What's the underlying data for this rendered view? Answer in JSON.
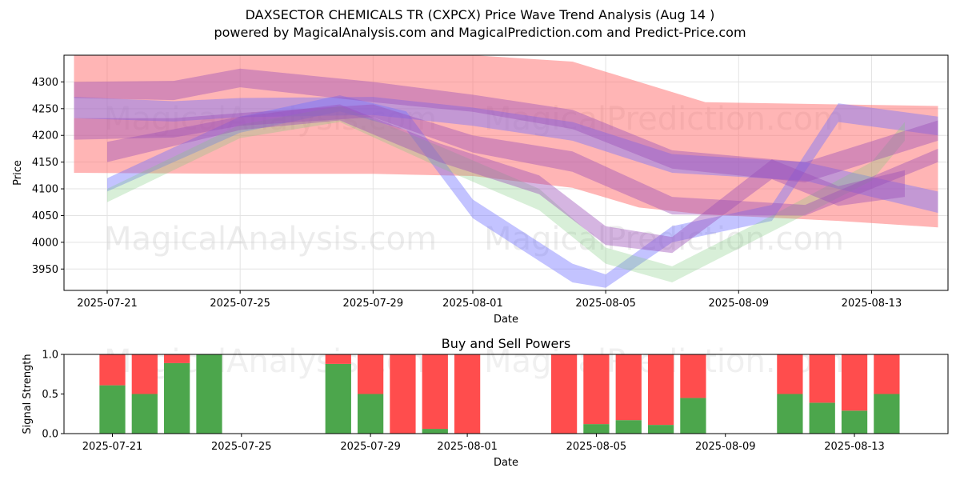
{
  "header": {
    "title": "DAXSECTOR CHEMICALS TR (CXPCX) Price Wave Trend Analysis (Aug 14 )",
    "subtitle": "powered by MagicalAnalysis.com and MagicalPrediction.com and Predict-Price.com"
  },
  "watermarks": [
    "MagicalAnalysis.com",
    "MagicalPrediction.com"
  ],
  "colors": {
    "red_band": "#ff6b6b",
    "blue_band": "#6f6fff",
    "green_band": "#7fc97f",
    "purple_band": "#9a4fb8",
    "buy": "#4ca64c",
    "sell": "#ff4d4d"
  },
  "chart_data": [
    {
      "type": "area",
      "xlabel": "Date",
      "ylabel": "Price",
      "ylim": [
        3910,
        4350
      ],
      "yticks": [
        3950,
        4000,
        4050,
        4100,
        4150,
        4200,
        4250,
        4300
      ],
      "x_start": "2025-07-20",
      "x_end": "2025-08-15",
      "xticks": [
        "2025-07-21",
        "2025-07-25",
        "2025-07-29",
        "2025-08-01",
        "2025-08-05",
        "2025-08-09",
        "2025-08-13"
      ],
      "grid": true,
      "bands": [
        {
          "color": "red",
          "x": [
            "2025-07-20",
            "2025-07-25",
            "2025-07-29",
            "2025-08-01",
            "2025-08-04",
            "2025-08-06",
            "2025-08-08",
            "2025-08-12",
            "2025-08-15"
          ],
          "upper": [
            4350,
            4350,
            4350,
            4350,
            4338,
            4300,
            4262,
            4258,
            4255
          ],
          "lower": [
            4130,
            4128,
            4128,
            4124,
            4102,
            4065,
            4052,
            4040,
            4028
          ]
        },
        {
          "color": "blue",
          "x": [
            "2025-07-20",
            "2025-07-23",
            "2025-07-25",
            "2025-07-29",
            "2025-08-01",
            "2025-08-04",
            "2025-08-07",
            "2025-08-11",
            "2025-08-15"
          ],
          "upper": [
            4272,
            4264,
            4270,
            4272,
            4252,
            4225,
            4165,
            4150,
            4095
          ],
          "lower": [
            4232,
            4226,
            4234,
            4238,
            4218,
            4190,
            4130,
            4115,
            4055
          ]
        },
        {
          "color": "blue",
          "x": [
            "2025-07-21",
            "2025-07-25",
            "2025-07-28",
            "2025-07-30",
            "2025-08-01",
            "2025-08-04",
            "2025-08-05",
            "2025-08-07",
            "2025-08-10",
            "2025-08-12",
            "2025-08-15"
          ],
          "upper": [
            4120,
            4235,
            4275,
            4245,
            4080,
            3960,
            3940,
            4030,
            4070,
            4260,
            4235
          ],
          "lower": [
            4095,
            4205,
            4245,
            4210,
            4045,
            3925,
            3915,
            4000,
            4040,
            4225,
            4200
          ]
        },
        {
          "color": "green",
          "x": [
            "2025-07-21",
            "2025-07-25",
            "2025-07-28",
            "2025-07-31",
            "2025-08-03",
            "2025-08-05",
            "2025-08-07",
            "2025-08-10",
            "2025-08-13",
            "2025-08-14"
          ],
          "upper": [
            4100,
            4220,
            4255,
            4180,
            4100,
            3990,
            3955,
            4050,
            4150,
            4225
          ],
          "lower": [
            4075,
            4195,
            4225,
            4140,
            4060,
            3960,
            3925,
            4020,
            4115,
            4190
          ]
        },
        {
          "color": "purple",
          "x": [
            "2025-07-20",
            "2025-07-23",
            "2025-07-25",
            "2025-07-29",
            "2025-08-01",
            "2025-08-04",
            "2025-08-07",
            "2025-08-11",
            "2025-08-15"
          ],
          "upper": [
            4300,
            4302,
            4325,
            4300,
            4276,
            4248,
            4172,
            4150,
            4228
          ],
          "lower": [
            4270,
            4266,
            4290,
            4262,
            4244,
            4212,
            4138,
            4112,
            4190
          ]
        },
        {
          "color": "purple",
          "x": [
            "2025-07-20",
            "2025-07-23",
            "2025-07-25",
            "2025-07-29",
            "2025-08-01",
            "2025-08-04",
            "2025-08-07",
            "2025-08-11",
            "2025-08-15"
          ],
          "upper": [
            4232,
            4232,
            4242,
            4258,
            4200,
            4170,
            4085,
            4070,
            4175
          ],
          "lower": [
            4192,
            4196,
            4218,
            4234,
            4168,
            4132,
            4052,
            4050,
            4150
          ]
        },
        {
          "color": "purple",
          "x": [
            "2025-07-21",
            "2025-07-25",
            "2025-07-28",
            "2025-07-31",
            "2025-08-03",
            "2025-08-05",
            "2025-08-07",
            "2025-08-10",
            "2025-08-12",
            "2025-08-14"
          ],
          "upper": [
            4188,
            4235,
            4258,
            4185,
            4125,
            4030,
            4010,
            4155,
            4105,
            4135
          ],
          "lower": [
            4150,
            4210,
            4228,
            4150,
            4090,
            3995,
            3980,
            4118,
            4068,
            4085
          ]
        }
      ]
    },
    {
      "type": "bar",
      "title": "Buy and Sell Powers",
      "xlabel": "Date",
      "ylabel": "Signal Strength",
      "ylim": [
        0,
        1.0
      ],
      "yticks": [
        "0.0",
        "0.5",
        "1.0"
      ],
      "xticks": [
        "2025-07-21",
        "2025-07-25",
        "2025-07-29",
        "2025-08-01",
        "2025-08-05",
        "2025-08-09",
        "2025-08-13"
      ],
      "categories": [
        "2025-07-21",
        "2025-07-22",
        "2025-07-23",
        "2025-07-24",
        "2025-07-28",
        "2025-07-29",
        "2025-07-30",
        "2025-07-31",
        "2025-08-01",
        "2025-08-04",
        "2025-08-05",
        "2025-08-06",
        "2025-08-07",
        "2025-08-08",
        "2025-08-11",
        "2025-08-12",
        "2025-08-13",
        "2025-08-14"
      ],
      "series": [
        {
          "name": "buy",
          "values": [
            0.61,
            0.5,
            0.89,
            1.0,
            0.88,
            0.5,
            0.0,
            0.06,
            0.0,
            0.0,
            0.12,
            0.17,
            0.11,
            0.45,
            0.5,
            0.39,
            0.29,
            0.5
          ]
        },
        {
          "name": "sell",
          "values": [
            0.39,
            0.5,
            0.11,
            0.0,
            0.12,
            0.5,
            1.0,
            0.94,
            1.0,
            1.0,
            0.88,
            0.83,
            0.89,
            0.55,
            0.5,
            0.61,
            0.71,
            0.5
          ]
        }
      ]
    }
  ]
}
